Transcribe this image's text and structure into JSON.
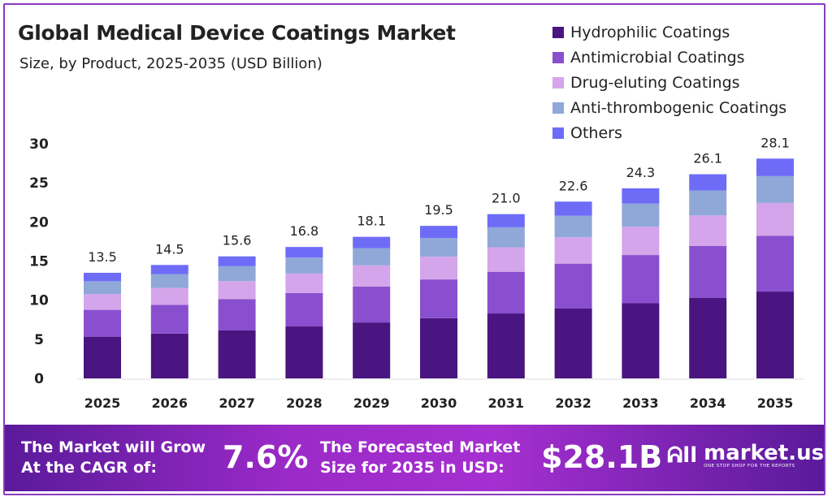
{
  "chart_data": {
    "type": "bar",
    "stacked": true,
    "title": "Global Medical Device Coatings Market",
    "subtitle": "Size, by Product, 2025-2035 (USD Billion)",
    "xlabel": "",
    "ylabel": "",
    "ylim": [
      0,
      30
    ],
    "yticks": [
      "0",
      "5",
      "10",
      "15",
      "20",
      "25",
      "30"
    ],
    "grid": false,
    "legend_position": "top-right",
    "categories": [
      "2025",
      "2026",
      "2027",
      "2028",
      "2029",
      "2030",
      "2031",
      "2032",
      "2033",
      "2034",
      "2035"
    ],
    "totals": [
      "13.5",
      "14.5",
      "15.6",
      "16.8",
      "18.1",
      "19.5",
      "21.0",
      "22.6",
      "24.3",
      "26.1",
      "28.1"
    ],
    "series": [
      {
        "name": "Hydrophilic Coatings",
        "color": "#4a1580",
        "values": [
          5.33,
          5.73,
          6.16,
          6.64,
          7.15,
          7.7,
          8.3,
          8.93,
          9.6,
          10.31,
          11.1
        ]
      },
      {
        "name": "Antimicrobial Coatings",
        "color": "#8a4fcf",
        "values": [
          3.43,
          3.68,
          3.96,
          4.27,
          4.6,
          4.95,
          5.33,
          5.74,
          6.17,
          6.63,
          7.14
        ]
      },
      {
        "name": "Drug-eluting Coatings",
        "color": "#d4a5ea",
        "values": [
          2.01,
          2.16,
          2.32,
          2.5,
          2.7,
          2.91,
          3.13,
          3.37,
          3.62,
          3.89,
          4.19
        ]
      },
      {
        "name": "Anti-thrombogenic Coatings",
        "color": "#8fa8d8",
        "values": [
          1.65,
          1.77,
          1.9,
          2.05,
          2.21,
          2.38,
          2.56,
          2.76,
          2.96,
          3.18,
          3.43
        ]
      },
      {
        "name": "Others",
        "color": "#6e6cf7",
        "values": [
          1.08,
          1.16,
          1.26,
          1.34,
          1.44,
          1.56,
          1.68,
          1.8,
          1.95,
          2.09,
          2.24
        ]
      }
    ]
  },
  "banner": {
    "cagr_label_1": "The Market will Grow",
    "cagr_label_2": "At the CAGR of:",
    "cagr_value": "7.6%",
    "forecast_label_1": "The Forecasted Market",
    "forecast_label_2": "Size for 2035 in USD:",
    "forecast_value": "$28.1B",
    "logo_name": "market.us",
    "logo_tagline": "ONE STOP SHOP FOR THE REPORTS"
  }
}
